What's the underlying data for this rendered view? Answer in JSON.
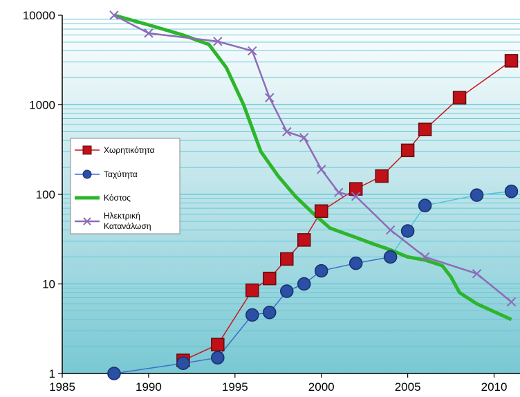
{
  "chart_data": {
    "type": "line",
    "title": "",
    "xlabel": "",
    "ylabel": "",
    "xlim": [
      1985,
      2011.5
    ],
    "ylim": [
      1,
      10000
    ],
    "yscale": "log",
    "x_ticks": [
      {
        "value": 1985,
        "label": "1985"
      },
      {
        "value": 1990,
        "label": "1990"
      },
      {
        "value": 1995,
        "label": "1995"
      },
      {
        "value": 2000,
        "label": "2000"
      },
      {
        "value": 2005,
        "label": "2005"
      },
      {
        "value": 2010,
        "label": "2010"
      }
    ],
    "y_ticks": [
      {
        "value": 1,
        "label": "1"
      },
      {
        "value": 10,
        "label": "10"
      },
      {
        "value": 100,
        "label": "100"
      },
      {
        "value": 1000,
        "label": "1000"
      },
      {
        "value": 10000,
        "label": "10000"
      }
    ],
    "grid": true,
    "legend_position": "left",
    "background": {
      "top": "#ffffff",
      "bottom": "#79c8d3"
    },
    "series": [
      {
        "name": "Χωρητικότητα",
        "color": "#c8141c",
        "marker": "square",
        "marker_color": "#c01018",
        "x": [
          1992,
          1994,
          1996,
          1997,
          1998,
          1999,
          2000,
          2002,
          2003.5,
          2005,
          2006,
          2008,
          2011
        ],
        "y": [
          1.4,
          2.1,
          8.5,
          11.5,
          19,
          31,
          65,
          115,
          160,
          310,
          530,
          1200,
          3100
        ]
      },
      {
        "name": "Ταχύτητα",
        "color": "#3a6fd0",
        "segment_color": "#4fc7d8",
        "marker": "circle",
        "marker_color": "#2a4fa5",
        "x": [
          1988,
          1992,
          1994,
          1996,
          1997,
          1998,
          1999,
          2000,
          2002,
          2004,
          2005,
          2006,
          2009,
          2011
        ],
        "y": [
          1,
          1.3,
          1.5,
          4.5,
          4.8,
          8.3,
          10,
          14,
          17,
          20,
          39,
          75,
          98,
          108
        ]
      },
      {
        "name": "Κόστος",
        "color": "#2db52b",
        "marker": "none",
        "x": [
          1988,
          1990,
          1992,
          1993.5,
          1994.5,
          1995.5,
          1996.5,
          1997.5,
          1998.5,
          1999.5,
          2000.5,
          2002,
          2003,
          2004,
          2005,
          2006,
          2007,
          2007.5,
          2008,
          2009,
          2011
        ],
        "y": [
          10000,
          7800,
          6000,
          4700,
          2600,
          1000,
          300,
          160,
          95,
          62,
          42,
          33,
          28,
          24,
          20,
          18.5,
          16,
          12,
          8,
          6,
          4
        ]
      },
      {
        "name": "Ηλεκτρική\nΚατανάλωση",
        "color": "#8e6bb8",
        "marker": "x",
        "marker_color": "#8e6bb8",
        "x": [
          1988,
          1990,
          1994,
          1996,
          1997,
          1998,
          1999,
          2000,
          2001,
          2002,
          2004,
          2006,
          2009,
          2011
        ],
        "y": [
          10000,
          6300,
          5100,
          4000,
          1200,
          500,
          430,
          190,
          105,
          95,
          40,
          20,
          13,
          6.3
        ]
      }
    ]
  }
}
